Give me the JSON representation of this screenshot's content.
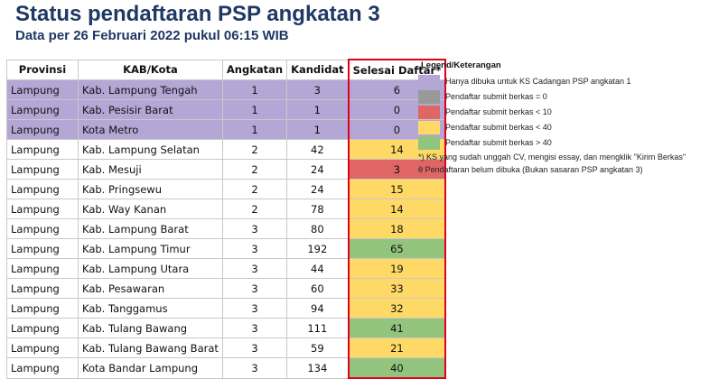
{
  "header": {
    "title": "Status pendaftaran PSP angkatan 3",
    "subtitle": "Data per 26 Februari 2022 pukul 06:15 WIB"
  },
  "colors": {
    "purple": "#b4a7d6",
    "gray": "#999999",
    "red": "#e06666",
    "yellow": "#ffd966",
    "green": "#93c47d",
    "white": "#ffffff",
    "highlight_border": "#e3001b",
    "title": "#1f3864"
  },
  "table": {
    "columns": [
      "Provinsi",
      "KAB/Kota",
      "Angkatan",
      "Kandidat",
      "Selesai Daftar*"
    ],
    "rows": [
      {
        "provinsi": "Lampung",
        "kab": "Kab. Lampung Tengah",
        "angkatan": "1",
        "kandidat": "3",
        "selesai": "6",
        "row_color": "purple",
        "status_color": "purple"
      },
      {
        "provinsi": "Lampung",
        "kab": "Kab. Pesisir Barat",
        "angkatan": "1",
        "kandidat": "1",
        "selesai": "0",
        "row_color": "purple",
        "status_color": "purple"
      },
      {
        "provinsi": "Lampung",
        "kab": "Kota Metro",
        "angkatan": "1",
        "kandidat": "1",
        "selesai": "0",
        "row_color": "purple",
        "status_color": "purple"
      },
      {
        "provinsi": "Lampung",
        "kab": "Kab. Lampung Selatan",
        "angkatan": "2",
        "kandidat": "42",
        "selesai": "14",
        "row_color": "white",
        "status_color": "yellow"
      },
      {
        "provinsi": "Lampung",
        "kab": "Kab. Mesuji",
        "angkatan": "2",
        "kandidat": "24",
        "selesai": "3",
        "row_color": "white",
        "status_color": "red"
      },
      {
        "provinsi": "Lampung",
        "kab": "Kab. Pringsewu",
        "angkatan": "2",
        "kandidat": "24",
        "selesai": "15",
        "row_color": "white",
        "status_color": "yellow"
      },
      {
        "provinsi": "Lampung",
        "kab": "Kab. Way Kanan",
        "angkatan": "2",
        "kandidat": "78",
        "selesai": "14",
        "row_color": "white",
        "status_color": "yellow"
      },
      {
        "provinsi": "Lampung",
        "kab": "Kab. Lampung Barat",
        "angkatan": "3",
        "kandidat": "80",
        "selesai": "18",
        "row_color": "white",
        "status_color": "yellow"
      },
      {
        "provinsi": "Lampung",
        "kab": "Kab. Lampung Timur",
        "angkatan": "3",
        "kandidat": "192",
        "selesai": "65",
        "row_color": "white",
        "status_color": "green"
      },
      {
        "provinsi": "Lampung",
        "kab": "Kab. Lampung Utara",
        "angkatan": "3",
        "kandidat": "44",
        "selesai": "19",
        "row_color": "white",
        "status_color": "yellow"
      },
      {
        "provinsi": "Lampung",
        "kab": "Kab. Pesawaran",
        "angkatan": "3",
        "kandidat": "60",
        "selesai": "33",
        "row_color": "white",
        "status_color": "yellow"
      },
      {
        "provinsi": "Lampung",
        "kab": "Kab. Tanggamus",
        "angkatan": "3",
        "kandidat": "94",
        "selesai": "32",
        "row_color": "white",
        "status_color": "yellow"
      },
      {
        "provinsi": "Lampung",
        "kab": "Kab. Tulang Bawang",
        "angkatan": "3",
        "kandidat": "111",
        "selesai": "41",
        "row_color": "white",
        "status_color": "green"
      },
      {
        "provinsi": "Lampung",
        "kab": "Kab. Tulang Bawang Barat",
        "angkatan": "3",
        "kandidat": "59",
        "selesai": "21",
        "row_color": "white",
        "status_color": "yellow"
      },
      {
        "provinsi": "Lampung",
        "kab": "Kota Bandar Lampung",
        "angkatan": "3",
        "kandidat": "134",
        "selesai": "40",
        "row_color": "white",
        "status_color": "green"
      }
    ]
  },
  "legend": {
    "title": "Legend/Keterangan",
    "items": [
      {
        "color": "purple",
        "label": "Hanya dibuka untuk KS Cadangan PSP angkatan 1"
      },
      {
        "color": "gray",
        "label": "Pendaftar submit berkas = 0"
      },
      {
        "color": "red",
        "label": "Pendaftar submit berkas < 10"
      },
      {
        "color": "yellow",
        "label": "Pendaftar submit berkas < 40"
      },
      {
        "color": "green",
        "label": "Pendaftar submit berkas > 40"
      }
    ],
    "notes": [
      "*) KS yang sudah unggah CV, mengisi essay, dan mengklik \"Kirim Berkas\"",
      "θ Pendaftaran belum dibuka (Bukan sasaran PSP angkatan 3)"
    ]
  }
}
